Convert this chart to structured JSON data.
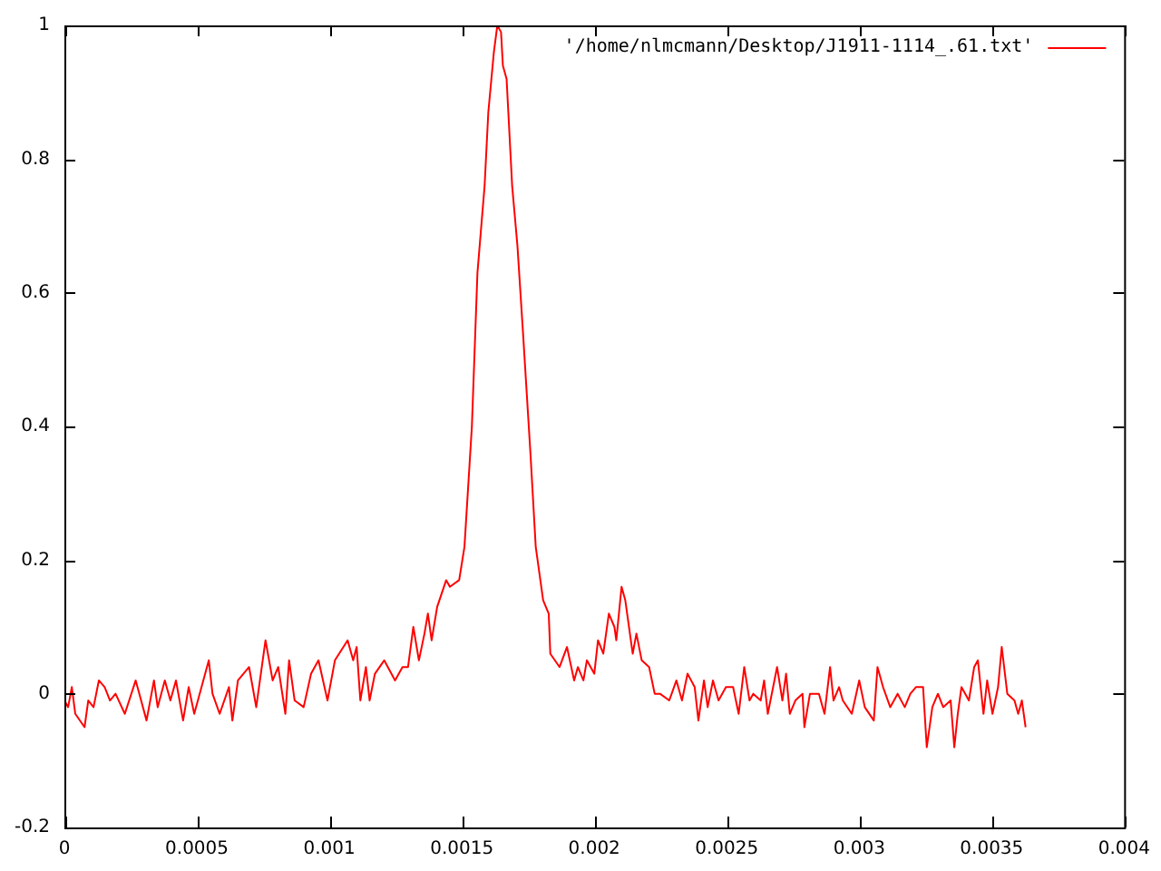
{
  "chart_data": {
    "type": "line",
    "legend": "top right",
    "grid": false,
    "xlim": [
      0,
      0.004
    ],
    "ylim": [
      -0.2,
      1
    ],
    "xticks": [
      0,
      0.0005,
      0.001,
      0.0015,
      0.002,
      0.0025,
      0.003,
      0.0035,
      0.004
    ],
    "yticks": [
      -0.2,
      0,
      0.2,
      0.4,
      0.6,
      0.8,
      1
    ],
    "series": [
      {
        "name": "'/home/nlmcmann/Desktop/J1911-1114_.61.txt'",
        "color": "#ff0000",
        "x": [
          0,
          1.4e-05,
          2.8e-05,
          4.1e-05,
          7.6e-05,
          9e-05,
          0.00011,
          0.00013,
          0.000152,
          0.000172,
          0.000193,
          0.000228,
          0.000269,
          0.00031,
          0.000338,
          0.000352,
          0.000379,
          0.0004,
          0.000421,
          0.000448,
          0.000469,
          0.00049,
          0.000545,
          0.000559,
          0.000586,
          0.000621,
          0.000634,
          0.000655,
          0.000697,
          0.000724,
          0.000759,
          0.000786,
          0.000807,
          0.000834,
          0.000848,
          0.000869,
          0.000903,
          0.000931,
          0.000959,
          0.000993,
          0.001021,
          0.001069,
          0.00109,
          0.001103,
          0.001117,
          0.001138,
          0.001152,
          0.001172,
          0.001207,
          0.001248,
          0.001276,
          0.001297,
          0.001317,
          0.001338,
          0.001359,
          0.001372,
          0.001386,
          0.001407,
          0.001441,
          0.001455,
          0.00149,
          0.00151,
          0.001538,
          0.001559,
          0.001586,
          0.0016,
          0.001621,
          0.001634,
          0.001648,
          0.001655,
          0.001669,
          0.00169,
          0.00171,
          0.001731,
          0.001759,
          0.001779,
          0.001793,
          0.001807,
          0.001828,
          0.001834,
          0.001869,
          0.001897,
          0.001924,
          0.001938,
          0.001959,
          0.001972,
          0.002,
          0.002014,
          0.002034,
          0.002055,
          0.002076,
          0.002083,
          0.002103,
          0.002117,
          0.002145,
          0.002159,
          0.002179,
          0.002207,
          0.002228,
          0.002248,
          0.002283,
          0.00231,
          0.002331,
          0.002352,
          0.002379,
          0.002393,
          0.002414,
          0.002428,
          0.002448,
          0.002469,
          0.002497,
          0.002524,
          0.002545,
          0.002566,
          0.002586,
          0.0026,
          0.002628,
          0.002641,
          0.002655,
          0.00269,
          0.00271,
          0.002724,
          0.002738,
          0.002759,
          0.002786,
          0.002793,
          0.002814,
          0.002848,
          0.002869,
          0.00289,
          0.002903,
          0.002924,
          0.002938,
          0.002972,
          0.003,
          0.003021,
          0.003055,
          0.003069,
          0.00309,
          0.003117,
          0.003145,
          0.003172,
          0.003193,
          0.003214,
          0.003241,
          0.003255,
          0.003276,
          0.003297,
          0.003317,
          0.003345,
          0.003359,
          0.003372,
          0.003386,
          0.003414,
          0.003434,
          0.003448,
          0.003469,
          0.003483,
          0.003503,
          0.003524,
          0.003538,
          0.003559,
          0.003586,
          0.0036,
          0.003614,
          0.003628
        ],
        "values": [
          -0.01,
          -0.02,
          0.01,
          -0.03,
          -0.05,
          -0.01,
          -0.02,
          0.02,
          0.01,
          -0.01,
          0,
          -0.03,
          0.02,
          -0.04,
          0.02,
          -0.02,
          0.02,
          -0.01,
          0.02,
          -0.04,
          0.01,
          -0.03,
          0.05,
          0,
          -0.03,
          0.01,
          -0.04,
          0.02,
          0.04,
          -0.02,
          0.08,
          0.02,
          0.04,
          -0.03,
          0.05,
          -0.01,
          -0.02,
          0.03,
          0.05,
          -0.01,
          0.05,
          0.08,
          0.05,
          0.07,
          -0.01,
          0.04,
          -0.01,
          0.03,
          0.05,
          0.02,
          0.04,
          0.04,
          0.1,
          0.05,
          0.09,
          0.12,
          0.08,
          0.13,
          0.17,
          0.16,
          0.17,
          0.22,
          0.4,
          0.63,
          0.76,
          0.87,
          0.96,
          1,
          0.99,
          0.94,
          0.92,
          0.76,
          0.67,
          0.54,
          0.36,
          0.22,
          0.18,
          0.14,
          0.12,
          0.06,
          0.04,
          0.07,
          0.02,
          0.04,
          0.02,
          0.05,
          0.03,
          0.08,
          0.06,
          0.12,
          0.1,
          0.08,
          0.16,
          0.14,
          0.06,
          0.09,
          0.05,
          0.04,
          0,
          0,
          -0.01,
          0.02,
          -0.01,
          0.03,
          0.01,
          -0.04,
          0.02,
          -0.02,
          0.02,
          -0.01,
          0.01,
          0.01,
          -0.03,
          0.04,
          -0.01,
          0,
          -0.01,
          0.02,
          -0.03,
          0.04,
          -0.01,
          0.03,
          -0.03,
          -0.01,
          0,
          -0.05,
          0,
          0,
          -0.03,
          0.04,
          -0.01,
          0.01,
          -0.01,
          -0.03,
          0.02,
          -0.02,
          -0.04,
          0.04,
          0.01,
          -0.02,
          0,
          -0.02,
          0,
          0.01,
          0.01,
          -0.08,
          -0.02,
          0,
          -0.02,
          -0.01,
          -0.08,
          -0.03,
          0.01,
          -0.01,
          0.04,
          0.05,
          -0.03,
          0.02,
          -0.03,
          0.01,
          0.07,
          0,
          -0.01,
          -0.03,
          -0.01,
          -0.05
        ]
      }
    ]
  }
}
